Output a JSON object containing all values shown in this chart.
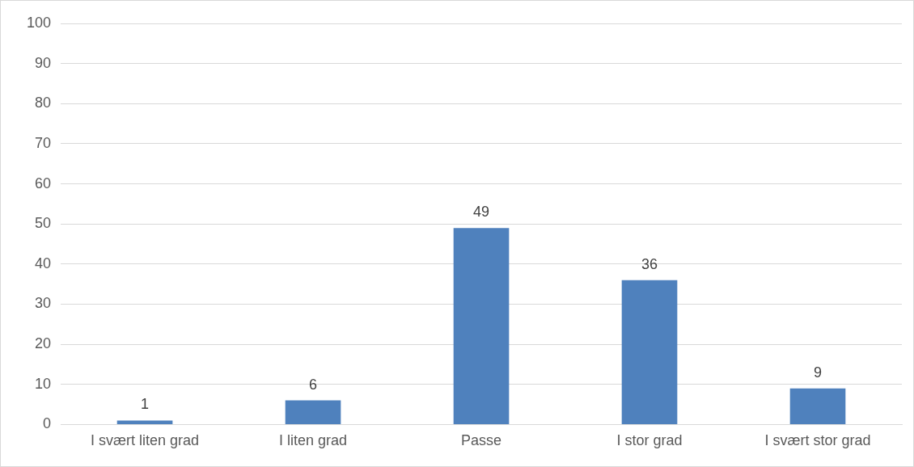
{
  "chart_data": {
    "type": "bar",
    "categories": [
      "I svært liten grad",
      "I liten grad",
      "Passe",
      "I stor grad",
      "I svært stor grad"
    ],
    "values": [
      1,
      6,
      49,
      36,
      9
    ],
    "color": "#4f81bd",
    "ylim": [
      0,
      100
    ],
    "yticks": [
      0,
      10,
      20,
      30,
      40,
      50,
      60,
      70,
      80,
      90,
      100
    ],
    "grid": "y",
    "data_labels": true
  }
}
